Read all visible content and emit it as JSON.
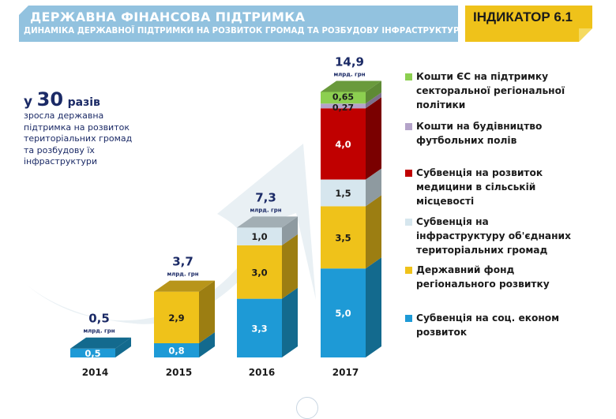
{
  "header": {
    "title": "ДЕРЖАВНА ФІНАНСОВА  ПІДТРИМКА",
    "subtitle": "ДИНАМІКА ДЕРЖАВНОЇ ПІДТРИМКИ НА РОЗВИТОК ГРОМАД ТА РОЗБУДОВУ ІНФРАСТРУКТУРИ",
    "indicator": "ІНДИКАТОР 6.1"
  },
  "growth": {
    "prefix": "у",
    "number": "30",
    "suffix": "разів",
    "description": "зросла державна підтримка на розвиток територіальних громад та розбудову їх інфраструктури"
  },
  "colors": {
    "header_bg": "#92c2df",
    "indicator_bg": "#efc21a",
    "text_dark": "#1b2a66"
  },
  "chart_data": {
    "type": "bar",
    "stacked": true,
    "title": "ДИНАМІКА ДЕРЖАВНОЇ ПІДТРИМКИ НА РОЗВИТОК ГРОМАД ТА РОЗБУДОВУ ІНФРАСТРУКТУРИ",
    "xlabel": "",
    "ylabel": "",
    "unit": "млрд. грн",
    "ylim": [
      0,
      15
    ],
    "grid": false,
    "legend_position": "right",
    "categories": [
      "2014",
      "2015",
      "2016",
      "2017"
    ],
    "totals": [
      {
        "value": 0.5,
        "label": "0,5"
      },
      {
        "value": 3.7,
        "label": "3,7"
      },
      {
        "value": 7.3,
        "label": "7,3"
      },
      {
        "value": 14.9,
        "label": "14,9"
      }
    ],
    "series": [
      {
        "name": "Субвенція на соц. економ розвиток",
        "color": "#1e9ad6",
        "side": "#136a8e",
        "top": "#136a8e",
        "label_color": "#ffffff",
        "values": [
          0.5,
          0.8,
          3.3,
          5.0
        ],
        "labels": [
          "0,5",
          "0,8",
          "3,3",
          "5,0"
        ]
      },
      {
        "name": "Державний фонд регіонального розвитку",
        "color": "#efc21a",
        "side": "#9c7e12",
        "top": "#b8951a",
        "label_color": "#1b1b1b",
        "values": [
          0,
          2.9,
          3.0,
          3.5
        ],
        "labels": [
          "",
          "2,9",
          "3,0",
          "3,5"
        ]
      },
      {
        "name": "Субвенція на інфраструктуру об'єднаних територіальних громад",
        "color": "#d6e6ee",
        "side": "#8e9aa0",
        "top": "#a2aeb4",
        "label_color": "#1b1b1b",
        "values": [
          0,
          0,
          1.0,
          1.5
        ],
        "labels": [
          "",
          "",
          "1,0",
          "1,5"
        ]
      },
      {
        "name": "Субвенція на розвиток медицини в сільській місцевості",
        "color": "#c00000",
        "side": "#7a0000",
        "top": "#7a0000",
        "label_color": "#ffffff",
        "values": [
          0,
          0,
          0,
          4.0
        ],
        "labels": [
          "",
          "",
          "",
          "4,0"
        ]
      },
      {
        "name": "Кошти на будівництво футбольних полів",
        "color": "#b4a3c9",
        "side": "#7d6f8d",
        "top": "#7d6f8d",
        "label_color": "#1b1b1b",
        "values": [
          0,
          0,
          0,
          0.27
        ],
        "labels": [
          "",
          "",
          "",
          "0,27"
        ]
      },
      {
        "name": "Кошти ЄС на підтримку секторальної регіональної політики",
        "color": "#8ccf50",
        "side": "#5e8a35",
        "top": "#6a9a3c",
        "label_color": "#1b1b1b",
        "values": [
          0,
          0,
          0,
          0.65
        ],
        "labels": [
          "",
          "",
          "",
          "0,65"
        ]
      }
    ]
  },
  "legend": [
    {
      "label": "Кошти ЄС на підтримку\nсекторальної регіональної\nполітики",
      "color": "#8ccf50"
    },
    {
      "label": "Кошти на будівництво\nфутбольних полів",
      "color": "#b4a3c9"
    },
    {
      "label": "Субвенція на розвиток\nмедицини в сільській\nмісцевості",
      "color": "#c00000"
    },
    {
      "label": "Субвенція на\nінфраструктуру об'єднаних\nтериторіальних громад",
      "color": "#d6e6ee"
    },
    {
      "label": "Державний фонд\nрегіонального розвитку",
      "color": "#efc21a"
    },
    {
      "label": "Субвенція на соц. економ\nрозвиток",
      "color": "#1e9ad6"
    }
  ]
}
